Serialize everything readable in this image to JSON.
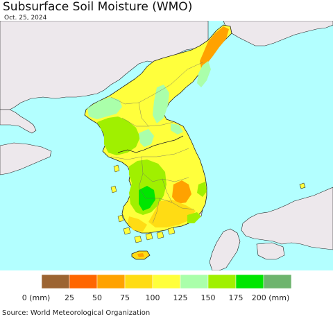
{
  "header": {
    "title": "Subsurface Soil Moisture (WMO)",
    "date": "Oct. 25, 2024"
  },
  "legend": {
    "bins": [
      {
        "label": "0 (mm)",
        "color": "#9c6432"
      },
      {
        "label": "25",
        "color": "#ff6600"
      },
      {
        "label": "50",
        "color": "#ffa200"
      },
      {
        "label": "75",
        "color": "#ffdc14"
      },
      {
        "label": "100",
        "color": "#ffff3c"
      },
      {
        "label": "125",
        "color": "#aaffaa"
      },
      {
        "label": "150",
        "color": "#a0f000"
      },
      {
        "label": "175",
        "color": "#00e600"
      },
      {
        "label": "200 (mm)",
        "color": "#6eb46e"
      }
    ]
  },
  "colors": {
    "ocean": "#b3ffff",
    "land_outside": "#ede8ec",
    "border": "#222222"
  },
  "footer": {
    "source": "Source: World Meteorological Organization"
  }
}
